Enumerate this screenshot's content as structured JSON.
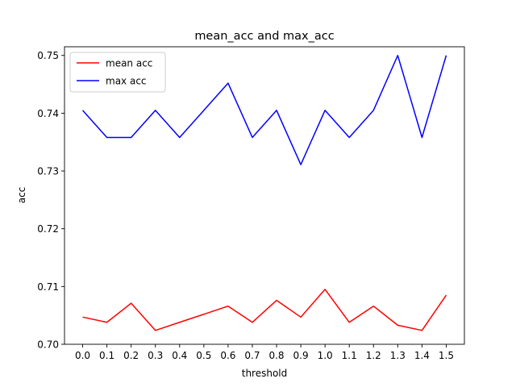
{
  "chart_data": {
    "type": "line",
    "title": "mean_acc and max_acc",
    "xlabel": "threshold",
    "ylabel": "acc",
    "x": [
      0.0,
      0.1,
      0.2,
      0.3,
      0.4,
      0.5,
      0.6,
      0.7,
      0.8,
      0.9,
      1.0,
      1.1,
      1.2,
      1.3,
      1.4,
      1.5
    ],
    "x_tick_labels": [
      "0.0",
      "0.1",
      "0.2",
      "0.3",
      "0.4",
      "0.5",
      "0.6",
      "0.7",
      "0.8",
      "0.9",
      "1.0",
      "1.1",
      "1.2",
      "1.3",
      "1.4",
      "1.5"
    ],
    "y_ticks": [
      0.7,
      0.71,
      0.72,
      0.73,
      0.74,
      0.75
    ],
    "y_tick_labels": [
      "0.70",
      "0.71",
      "0.72",
      "0.73",
      "0.74",
      "0.75"
    ],
    "ylim": [
      0.7,
      0.7515
    ],
    "xlim": [
      -0.075,
      1.575
    ],
    "grid": false,
    "legend_position": "top-left",
    "series": [
      {
        "name": "mean acc",
        "color": "#ff0000",
        "values": [
          0.7047,
          0.7038,
          0.7071,
          0.7024,
          0.7038,
          0.7052,
          0.7066,
          0.7038,
          0.7076,
          0.7047,
          0.7095,
          0.7038,
          0.7066,
          0.7033,
          0.7024,
          0.7085
        ]
      },
      {
        "name": "max acc",
        "color": "#0000ff",
        "values": [
          0.7405,
          0.7358,
          0.7358,
          0.7405,
          0.7358,
          0.7405,
          0.7452,
          0.7358,
          0.7405,
          0.7311,
          0.7405,
          0.7358,
          0.7405,
          0.75,
          0.7358,
          0.75
        ]
      }
    ]
  }
}
